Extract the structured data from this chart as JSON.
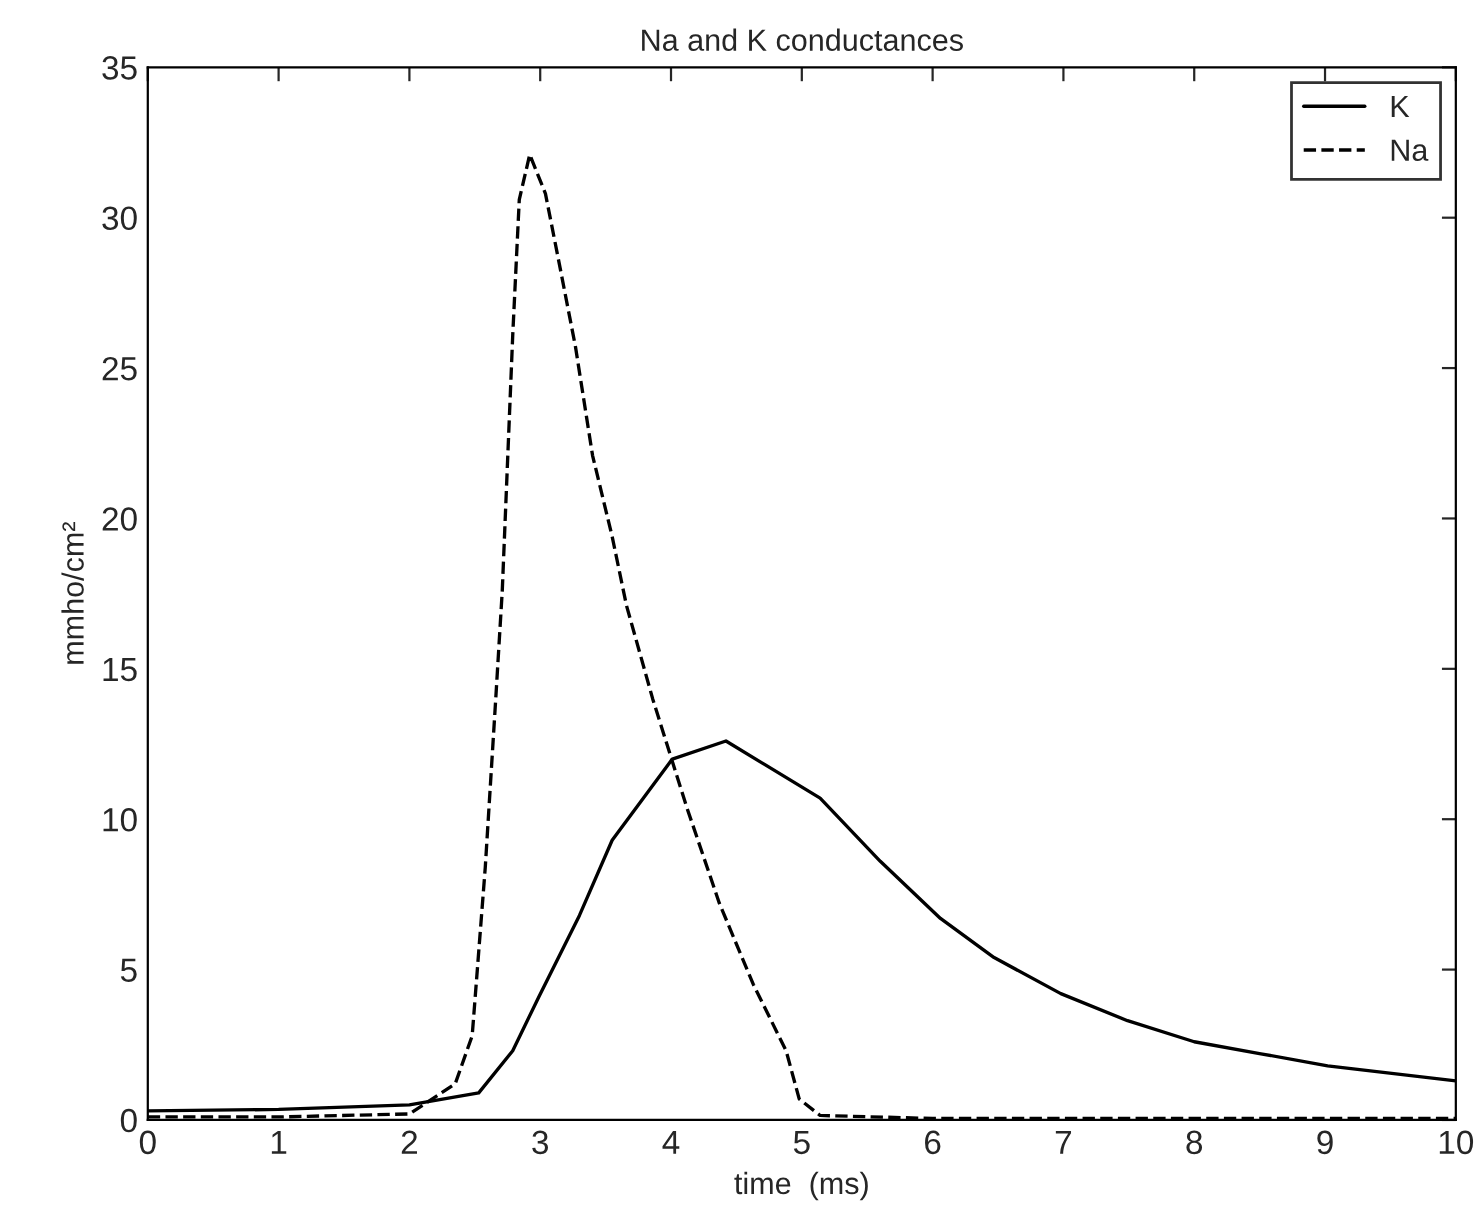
{
  "chart_data": {
    "type": "line",
    "title": "Na and K conductances",
    "xlabel": "time  (ms)",
    "ylabel": "mmho/cm²",
    "xlim": [
      0,
      10
    ],
    "xticks": [
      0,
      1,
      2,
      3,
      4,
      5,
      6,
      7,
      8,
      9,
      10
    ],
    "ylim": [
      0,
      35
    ],
    "yticks": [
      0,
      5,
      10,
      15,
      20,
      25,
      30,
      35
    ],
    "grid": false,
    "legend": "top right",
    "series": [
      {
        "name": "K",
        "color": "#000000",
        "line_style": "solid",
        "x": [
          0,
          1,
          2,
          2.53,
          2.79,
          2.99,
          3.3,
          3.55,
          4.01,
          4.42,
          5.14,
          5.6,
          6.06,
          6.47,
          6.98,
          7.49,
          8.0,
          8.51,
          9.02,
          10
        ],
        "values": [
          0.3,
          0.35,
          0.5,
          0.9,
          2.3,
          4.1,
          6.8,
          9.3,
          12.0,
          12.6,
          10.7,
          8.6,
          6.7,
          5.4,
          4.2,
          3.3,
          2.6,
          2.2,
          1.8,
          1.3
        ]
      },
      {
        "name": "Na",
        "color": "#000000",
        "line_style": "dashed",
        "x": [
          0,
          1,
          2,
          2.35,
          2.48,
          2.58,
          2.66,
          2.71,
          2.79,
          2.84,
          2.92,
          3.04,
          3.14,
          3.27,
          3.4,
          3.55,
          3.66,
          3.86,
          4.12,
          4.37,
          4.63,
          4.88,
          4.98,
          5.14,
          6,
          8,
          10
        ],
        "values": [
          0.1,
          0.1,
          0.2,
          1.2,
          2.8,
          8.4,
          14.0,
          17.6,
          26.1,
          30.6,
          32.1,
          30.8,
          28.6,
          25.7,
          22.1,
          19.4,
          17.1,
          14.0,
          10.4,
          7.2,
          4.5,
          2.3,
          0.7,
          0.15,
          0.05,
          0.05,
          0.05
        ]
      }
    ]
  }
}
